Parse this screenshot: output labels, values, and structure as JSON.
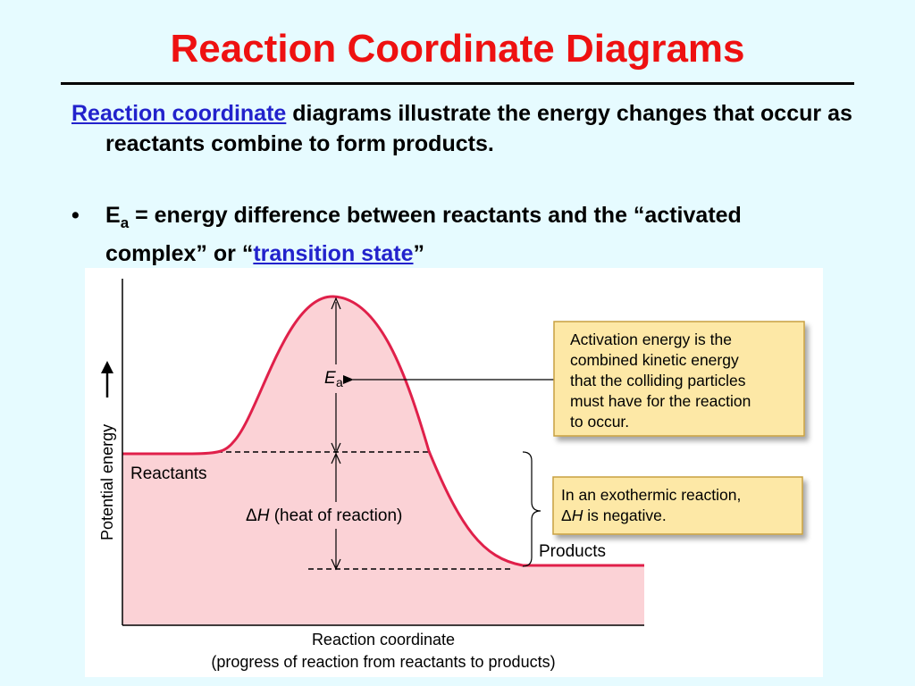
{
  "slide": {
    "title": "Reaction Coordinate Diagrams",
    "intro_link": "Reaction coordinate",
    "intro_rest": " diagrams illustrate the energy changes that occur as reactants combine to form products.",
    "bullet_symbol": "•",
    "bullet_ea_main": "E",
    "bullet_ea_sub": "a",
    "bullet_text_1": " = energy difference between reactants and the “activated complex” or “",
    "bullet_link": "transition state",
    "bullet_text_2": "”"
  },
  "diagram": {
    "y_axis_label": "Potential energy",
    "x_axis_label_1": "Reaction coordinate",
    "x_axis_label_2": "(progress of reaction from reactants to products)",
    "reactants_label": "Reactants",
    "products_label": "Products",
    "ea_main": "E",
    "ea_sub": "a",
    "dh_delta": "Δ",
    "dh_h": "H",
    "dh_rest": " (heat of reaction)",
    "box1_lines": [
      "Activation energy is the",
      "combined kinetic energy",
      "that the colliding particles",
      "must have for the reaction",
      "to occur."
    ],
    "box2_line1": "In an exothermic reaction,",
    "box2_delta": "Δ",
    "box2_h": "H",
    "box2_rest": " is negative.",
    "curve_color": "#e0204a",
    "fill_color": "#fbd2d6",
    "box_fill": "#fde8a6",
    "box_border": "#c8a040"
  }
}
